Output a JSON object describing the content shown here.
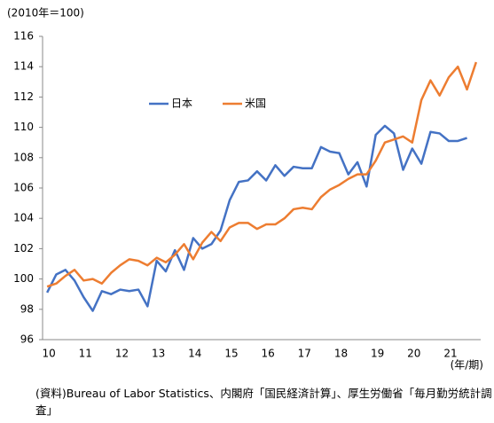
{
  "chart_data": {
    "type": "line",
    "unit_note": "(2010年＝100)",
    "x_unit": "(年/期)",
    "source": "(資料)Bureau of Labor Statistics、内閣府「国民経済計算」、厚生労働省「毎月勤労統計調査」",
    "categories": [
      "10",
      null,
      null,
      null,
      "11",
      null,
      null,
      null,
      "12",
      null,
      null,
      null,
      "13",
      null,
      null,
      null,
      "14",
      null,
      null,
      null,
      "15",
      null,
      null,
      null,
      "16",
      null,
      null,
      null,
      "17",
      null,
      null,
      null,
      "18",
      null,
      null,
      null,
      "19",
      null,
      null,
      null,
      "20",
      null,
      null,
      null,
      "21",
      null,
      null,
      null
    ],
    "series": [
      {
        "name": "日本",
        "color": "#4472c4",
        "values": [
          99.1,
          100.3,
          100.6,
          99.9,
          98.8,
          97.9,
          99.2,
          99.0,
          99.3,
          99.2,
          99.3,
          98.2,
          101.2,
          100.5,
          101.9,
          100.6,
          102.7,
          102.0,
          102.3,
          103.2,
          105.2,
          106.4,
          106.5,
          107.1,
          106.5,
          107.5,
          106.8,
          107.4,
          107.3,
          107.3,
          108.7,
          108.4,
          108.3,
          106.9,
          107.7,
          106.1,
          109.5,
          110.1,
          109.6,
          107.2,
          108.6,
          107.6,
          109.7,
          109.6,
          109.1,
          109.1,
          109.3,
          null
        ]
      },
      {
        "name": "米国",
        "color": "#ed7d31",
        "values": [
          99.5,
          99.7,
          100.2,
          100.6,
          99.9,
          100.0,
          99.7,
          100.4,
          100.9,
          101.3,
          101.2,
          100.9,
          101.4,
          101.1,
          101.6,
          102.3,
          101.3,
          102.4,
          103.1,
          102.5,
          103.4,
          103.7,
          103.7,
          103.3,
          103.6,
          103.6,
          104.0,
          104.6,
          104.7,
          104.6,
          105.4,
          105.9,
          106.2,
          106.6,
          106.9,
          106.9,
          107.8,
          109.0,
          109.2,
          109.4,
          109.0,
          111.8,
          113.1,
          112.1,
          113.3,
          114.0,
          112.5,
          114.3
        ]
      }
    ],
    "ylim": [
      96,
      116
    ],
    "yticks": [
      96,
      98,
      100,
      102,
      104,
      106,
      108,
      110,
      112,
      114,
      116
    ],
    "grid": false
  }
}
